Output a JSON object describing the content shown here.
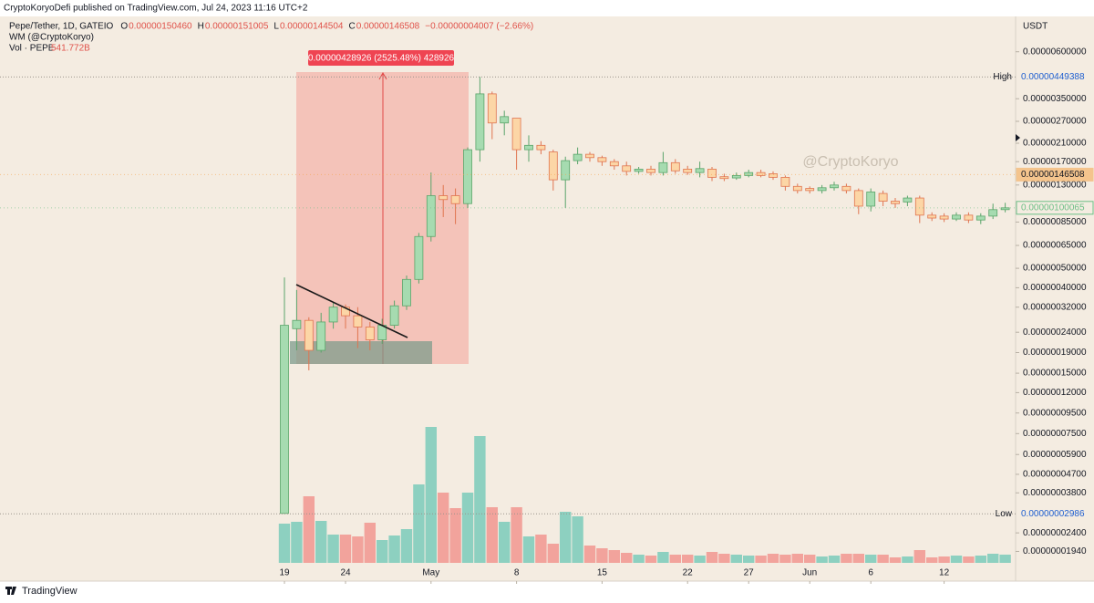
{
  "header": "CryptoKoryoDefi published on TradingView.com, Jul 24, 2023 11:16 UTC+2",
  "footer_brand": "TradingView",
  "chart_data": {
    "type": "candlestick",
    "symbol": "Pepe/Tether, 1D, GATEIO",
    "ohlc_legend": [
      {
        "label": "O",
        "value": "0.00000150460"
      },
      {
        "label": "H",
        "value": "0.00000151005"
      },
      {
        "label": "L",
        "value": "0.00000144504"
      },
      {
        "label": "C",
        "value": "0.00000146508"
      }
    ],
    "change": "−0.00000004007 (−2.66%)",
    "indicator": "WM (@CryptoKoryo)",
    "volume_name": "Vol · PEPE",
    "volume_last": "541.772B",
    "currency": "USDT",
    "watermark": "@CryptoKoryo",
    "measure_label": "0.00000428926 (2525.48%) 428926",
    "log_scale": true,
    "up_color": "#a6dbb0",
    "up_border": "#5aa56a",
    "down_color": "#fcd6a6",
    "down_border": "#e0744f",
    "volume_up_color": "#8dd0c0",
    "volume_down_color": "#f2a39c",
    "background": "#f4ece1",
    "categories": [
      "19",
      null,
      null,
      null,
      null,
      "24",
      null,
      null,
      null,
      null,
      null,
      null,
      "May",
      null,
      null,
      null,
      null,
      null,
      null,
      "8",
      null,
      null,
      null,
      null,
      null,
      null,
      "15",
      null,
      null,
      null,
      null,
      null,
      null,
      "22",
      null,
      null,
      null,
      null,
      "27",
      null,
      null,
      null,
      null,
      "Jun",
      null,
      null,
      null,
      null,
      "6",
      null,
      null,
      null,
      null,
      null,
      "12",
      null,
      null,
      null,
      null,
      null
    ],
    "open": [
      3e-08,
      2.5e-07,
      2.75e-07,
      1.95e-07,
      2.7e-07,
      3.2e-07,
      2.9e-07,
      2.55e-07,
      2.2e-07,
      2.6e-07,
      3.25e-07,
      4.4e-07,
      7.2e-07,
      1.15e-06,
      1.15e-06,
      1.05e-06,
      1.95e-06,
      3.7e-06,
      2.65e-06,
      2.8e-06,
      1.95e-06,
      2.05e-06,
      1.9e-06,
      1.38e-06,
      1.72e-06,
      1.85e-06,
      1.78e-06,
      1.7e-06,
      1.62e-06,
      1.52e-06,
      1.56e-06,
      1.5e-06,
      1.68e-06,
      1.56e-06,
      1.5e-06,
      1.56e-06,
      1.43e-06,
      1.41e-06,
      1.45e-06,
      1.5e-06,
      1.48e-06,
      1.42e-06,
      1.28e-06,
      1.25e-06,
      1.22e-06,
      1.26e-06,
      1.28e-06,
      1.22e-06,
      1.02e-06,
      1.18e-06,
      1.08e-06,
      1.07e-06,
      1.12e-06,
      9.2e-07,
      9.1e-07,
      8.8e-07,
      9.2e-07,
      8.7e-07,
      9.1e-07,
      9.8e-07
    ],
    "high": [
      4.5e-07,
      3.9e-07,
      2.85e-07,
      3e-07,
      3.4e-07,
      3.3e-07,
      3.2e-07,
      2.7e-07,
      2.8e-07,
      3.45e-07,
      4.6e-07,
      7.5e-07,
      1.5e-06,
      1.3e-06,
      1.25e-06,
      2e-06,
      4.49388e-06,
      3.8e-06,
      3.05e-06,
      2.8e-06,
      2.3e-06,
      2.15e-06,
      1.95e-06,
      1.8e-06,
      2e-06,
      1.9e-06,
      1.82e-06,
      1.75e-06,
      1.7e-06,
      1.6e-06,
      1.62e-06,
      1.9e-06,
      1.75e-06,
      1.62e-06,
      1.7e-06,
      1.6e-06,
      1.48e-06,
      1.5e-06,
      1.55e-06,
      1.55e-06,
      1.52e-06,
      1.45e-06,
      1.32e-06,
      1.28e-06,
      1.3e-06,
      1.35e-06,
      1.32e-06,
      1.25e-06,
      1.25e-06,
      1.22e-06,
      1.12e-06,
      1.15e-06,
      1.15e-06,
      9.5e-07,
      9.4e-07,
      9.5e-07,
      9.5e-07,
      9.4e-07,
      1.05e-06,
      1.06e-06
    ],
    "low": [
      2.986e-08,
      1.95e-07,
      1.55e-07,
      1.9e-07,
      2.5e-07,
      2.5e-07,
      2e-07,
      1.95e-07,
      2.1e-07,
      2.5e-07,
      3.1e-07,
      4.2e-07,
      6.8e-07,
      9e-07,
      8.3e-07,
      1e-06,
      1.7e-06,
      2.2e-06,
      2.3e-06,
      1.55e-06,
      1.7e-06,
      1.85e-06,
      1.22e-06,
      1e-06,
      1.65e-06,
      1.7e-06,
      1.62e-06,
      1.55e-06,
      1.45e-06,
      1.48e-06,
      1.45e-06,
      1.45e-06,
      1.48e-06,
      1.46e-06,
      1.42e-06,
      1.36e-06,
      1.36e-06,
      1.38e-06,
      1.42e-06,
      1.42e-06,
      1.38e-06,
      1.22e-06,
      1.18e-06,
      1.18e-06,
      1.18e-06,
      1.22e-06,
      1.18e-06,
      9.3e-07,
      9.6e-07,
      1.02e-06,
      1e-06,
      1.02e-06,
      8.4e-07,
      8.6e-07,
      8.5e-07,
      8.6e-07,
      8.4e-07,
      8.3e-07,
      8.8e-07,
      9.5e-07
    ],
    "close": [
      2.6e-07,
      2.75e-07,
      1.95e-07,
      2.7e-07,
      3.2e-07,
      2.9e-07,
      2.55e-07,
      2.2e-07,
      2.6e-07,
      3.25e-07,
      4.4e-07,
      7.2e-07,
      1.15e-06,
      1.1e-06,
      1.05e-06,
      1.95e-06,
      3.7e-06,
      2.65e-06,
      2.85e-06,
      1.95e-06,
      2.05e-06,
      1.95e-06,
      1.38e-06,
      1.72e-06,
      1.85e-06,
      1.78e-06,
      1.7e-06,
      1.62e-06,
      1.52e-06,
      1.56e-06,
      1.5e-06,
      1.68e-06,
      1.53e-06,
      1.5e-06,
      1.57e-06,
      1.42e-06,
      1.4e-06,
      1.45e-06,
      1.5e-06,
      1.45e-06,
      1.42e-06,
      1.28e-06,
      1.22e-06,
      1.22e-06,
      1.26e-06,
      1.3e-06,
      1.22e-06,
      1.02e-06,
      1.2e-06,
      1.08e-06,
      1.05e-06,
      1.12e-06,
      9.2e-07,
      8.9e-07,
      8.8e-07,
      9.2e-07,
      8.7e-07,
      9.1e-07,
      9.8e-07,
      1.00065e-06
    ],
    "volume": [
      2580000000000.0,
      2700000000000.0,
      4380000000000.0,
      2760000000000.0,
      1860000000000.0,
      1860000000000.0,
      1740000000000.0,
      2640000000000.0,
      1500000000000.0,
      1800000000000.0,
      2220000000000.0,
      5160000000000.0,
      8940000000000.0,
      4620000000000.0,
      3600000000000.0,
      4620000000000.0,
      8340000000000.0,
      3660000000000.0,
      2700000000000.0,
      3660000000000.0,
      1740000000000.0,
      1860000000000.0,
      1260000000000.0,
      3360000000000.0,
      3060000000000.0,
      1140000000000.0,
      960000000000.0,
      840000000000.0,
      660000000000.0,
      540000000000.0,
      480000000000.0,
      720000000000.0,
      540000000000.0,
      540000000000.0,
      480000000000.0,
      720000000000.0,
      600000000000.0,
      540000000000.0,
      480000000000.0,
      480000000000.0,
      600000000000.0,
      540000000000.0,
      600000000000.0,
      540000000000.0,
      420000000000.0,
      480000000000.0,
      600000000000.0,
      600000000000.0,
      540000000000.0,
      540000000000.0,
      360000000000.0,
      420000000000.0,
      840000000000.0,
      360000000000.0,
      420000000000.0,
      480000000000.0,
      420000000000.0,
      480000000000.0,
      600000000000.0,
      541772000000
    ],
    "ylim": [
      1.38e-08,
      9e-06
    ],
    "yticks": [
      {
        "value": 6e-06,
        "label": "0.00000600000"
      },
      {
        "value": 3.5e-06,
        "label": "0.00000350000"
      },
      {
        "value": 2.7e-06,
        "label": "0.00000270000"
      },
      {
        "value": 2.1e-06,
        "label": "0.00000210000"
      },
      {
        "value": 1.7e-06,
        "label": "0.00000170000"
      },
      {
        "value": 1.3e-06,
        "label": "0.00000130000"
      },
      {
        "value": 8.5e-07,
        "label": "0.00000085000"
      },
      {
        "value": 6.5e-07,
        "label": "0.00000065000"
      },
      {
        "value": 5e-07,
        "label": "0.00000050000"
      },
      {
        "value": 4e-07,
        "label": "0.00000040000"
      },
      {
        "value": 3.2e-07,
        "label": "0.00000032000"
      },
      {
        "value": 2.4e-07,
        "label": "0.00000024000"
      },
      {
        "value": 1.9e-07,
        "label": "0.00000019000"
      },
      {
        "value": 1.5e-07,
        "label": "0.00000015000"
      },
      {
        "value": 1.2e-07,
        "label": "0.00000012000"
      },
      {
        "value": 9.5e-08,
        "label": "0.00000009500"
      },
      {
        "value": 7.5e-08,
        "label": "0.00000007500"
      },
      {
        "value": 5.9e-08,
        "label": "0.00000005900"
      },
      {
        "value": 4.7e-08,
        "label": "0.00000004700"
      },
      {
        "value": 3.8e-08,
        "label": "0.00000003800"
      },
      {
        "value": 2.4e-08,
        "label": "0.00000002400"
      },
      {
        "value": 1.94e-08,
        "label": "0.00000001940"
      }
    ],
    "high_marker": {
      "name": "High",
      "value": 4.49388e-06,
      "label": "0.00000449388"
    },
    "low_marker": {
      "name": "Low",
      "value": 2.986e-08,
      "label": "0.00000002986"
    },
    "price_markers": [
      {
        "value": 1.46508e-06,
        "label": "0.00000146508",
        "color": "#f5a54a"
      },
      {
        "value": 1.00065e-06,
        "label": "0.00000100065",
        "color": "#6cbf86"
      }
    ]
  }
}
